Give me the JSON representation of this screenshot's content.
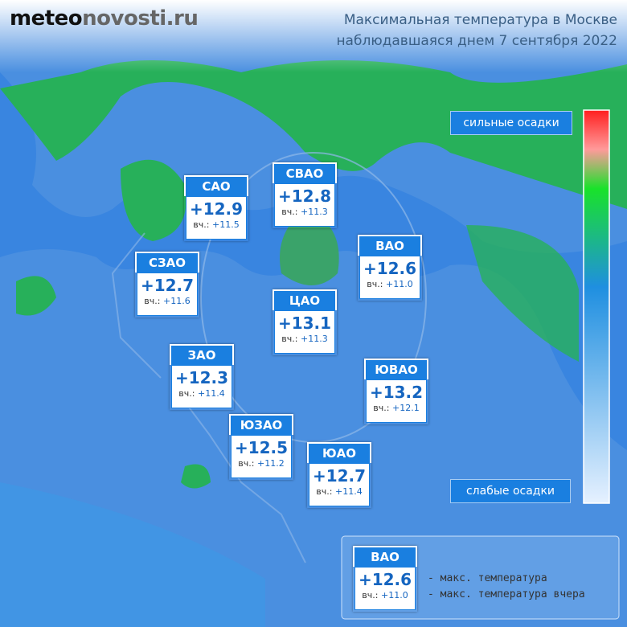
{
  "logo": {
    "part1": "meteo",
    "part2": "novosti.ru"
  },
  "title": {
    "line1": "Максимальная температура в Москве",
    "line2": "наблюдавшаяся днем 7 сентября 2022"
  },
  "prev_prefix": "вч.:",
  "districts": [
    {
      "name": "САО",
      "temp": "+12.9",
      "prev": "+11.5"
    },
    {
      "name": "СВАО",
      "temp": "+12.8",
      "prev": "+11.3"
    },
    {
      "name": "СЗАО",
      "temp": "+12.7",
      "prev": "+11.6"
    },
    {
      "name": "ВАО",
      "temp": "+12.6",
      "prev": "+11.0"
    },
    {
      "name": "ЦАО",
      "temp": "+13.1",
      "prev": "+11.3"
    },
    {
      "name": "ЗАО",
      "temp": "+12.3",
      "prev": "+11.4"
    },
    {
      "name": "ЮВАО",
      "temp": "+13.2",
      "prev": "+12.1"
    },
    {
      "name": "ЮЗАО",
      "temp": "+12.5",
      "prev": "+11.2"
    },
    {
      "name": "ЮАО",
      "temp": "+12.7",
      "prev": "+11.4"
    }
  ],
  "scale": {
    "top": "сильные осадки",
    "bottom": "слабые осадки"
  },
  "legend": {
    "name": "ВАО",
    "temp": "+12.6",
    "prev": "+11.0",
    "temp_desc": "- макс. температура",
    "prev_desc": "- макс. температура вчера"
  }
}
